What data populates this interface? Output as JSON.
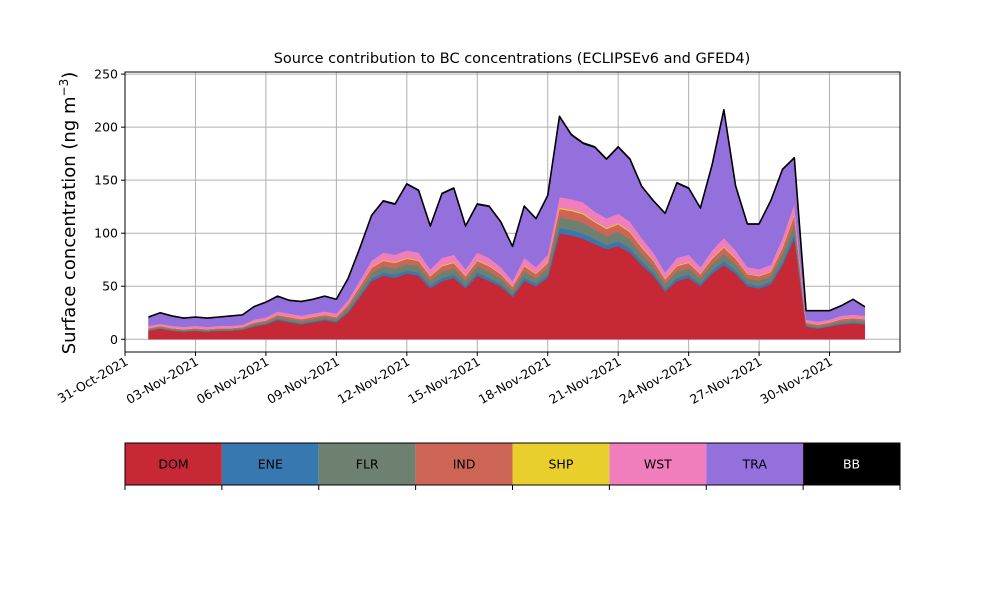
{
  "chart_data": {
    "type": "area",
    "stacked": true,
    "title": "Source contribution to BC concentrations (ECLIPSEv6 and GFED4)",
    "xlabel": "",
    "ylabel": "Surface concentration (ng m",
    "ylabel_sup": "−3",
    "ylabel_close": ")",
    "xlim": [
      "2021-10-31",
      "2021-12-03"
    ],
    "ylim": [
      -12,
      252
    ],
    "grid": true,
    "x_ticks": [
      "2021-10-31",
      "2021-11-03",
      "2021-11-06",
      "2021-11-09",
      "2021-11-12",
      "2021-11-15",
      "2021-11-18",
      "2021-11-21",
      "2021-11-24",
      "2021-11-27",
      "2021-11-30"
    ],
    "x_tick_labels": [
      "31-Oct-2021",
      "03-Nov-2021",
      "06-Nov-2021",
      "09-Nov-2021",
      "12-Nov-2021",
      "15-Nov-2021",
      "18-Nov-2021",
      "21-Nov-2021",
      "24-Nov-2021",
      "27-Nov-2021",
      "30-Nov-2021"
    ],
    "y_ticks": [
      0,
      50,
      100,
      150,
      200,
      250
    ],
    "y_tick_labels": [
      "0",
      "50",
      "100",
      "150",
      "200",
      "250"
    ],
    "x": [
      "2021-11-01",
      "2021-11-01 12:00",
      "2021-11-02",
      "2021-11-02 12:00",
      "2021-11-03",
      "2021-11-03 12:00",
      "2021-11-04",
      "2021-11-04 12:00",
      "2021-11-05",
      "2021-11-05 12:00",
      "2021-11-06",
      "2021-11-06 12:00",
      "2021-11-07",
      "2021-11-07 12:00",
      "2021-11-08",
      "2021-11-08 12:00",
      "2021-11-09",
      "2021-11-09 12:00",
      "2021-11-10",
      "2021-11-10 12:00",
      "2021-11-11",
      "2021-11-11 12:00",
      "2021-11-12",
      "2021-11-12 12:00",
      "2021-11-13",
      "2021-11-13 12:00",
      "2021-11-14",
      "2021-11-14 12:00",
      "2021-11-15",
      "2021-11-15 12:00",
      "2021-11-16",
      "2021-11-16 12:00",
      "2021-11-17",
      "2021-11-17 12:00",
      "2021-11-18",
      "2021-11-18 12:00",
      "2021-11-19",
      "2021-11-19 12:00",
      "2021-11-20",
      "2021-11-20 12:00",
      "2021-11-21",
      "2021-11-21 12:00",
      "2021-11-22",
      "2021-11-22 12:00",
      "2021-11-23",
      "2021-11-23 12:00",
      "2021-11-24",
      "2021-11-24 12:00",
      "2021-11-25",
      "2021-11-25 12:00",
      "2021-11-26",
      "2021-11-26 12:00",
      "2021-11-27",
      "2021-11-27 12:00",
      "2021-11-28",
      "2021-11-28 12:00",
      "2021-11-29",
      "2021-11-29 12:00",
      "2021-11-30",
      "2021-11-30 12:00",
      "2021-12-01",
      "2021-12-01 12:00"
    ],
    "series": [
      {
        "name": "DOM",
        "color": "#c62836",
        "values": [
          8,
          10,
          8,
          7,
          8,
          7,
          8,
          8,
          9,
          12,
          14,
          18,
          16,
          14,
          16,
          18,
          16,
          25,
          40,
          55,
          60,
          58,
          62,
          60,
          48,
          55,
          58,
          48,
          60,
          55,
          50,
          40,
          55,
          50,
          58,
          100,
          98,
          95,
          90,
          85,
          88,
          82,
          70,
          60,
          45,
          55,
          58,
          50,
          62,
          70,
          62,
          50,
          48,
          52,
          70,
          95,
          12,
          10,
          12,
          14,
          15,
          14
        ]
      },
      {
        "name": "ENE",
        "color": "#3778b0",
        "values": [
          0.5,
          0.5,
          0.5,
          0.5,
          0.5,
          0.5,
          0.5,
          0.5,
          0.5,
          0.8,
          0.8,
          1,
          1,
          1,
          1,
          1,
          1,
          1.5,
          2,
          2.5,
          3,
          3,
          3,
          3,
          2.5,
          3,
          3,
          2.5,
          3,
          3,
          2.5,
          2,
          3,
          2.5,
          3,
          5,
          5,
          5,
          4.5,
          4,
          4.5,
          4,
          3.5,
          3,
          2.5,
          3,
          3,
          2.5,
          3,
          3.5,
          3,
          2.5,
          2.5,
          2.5,
          3.5,
          5,
          0.8,
          0.8,
          0.8,
          1,
          1,
          1
        ]
      },
      {
        "name": "FLR",
        "color": "#6e8170",
        "values": [
          1,
          1,
          1,
          1,
          1,
          1,
          1,
          1,
          1,
          1.5,
          1.5,
          2,
          2,
          2,
          2,
          2,
          2,
          3,
          4,
          5,
          6,
          6,
          6,
          6,
          5,
          6,
          6,
          5,
          6,
          6,
          5,
          4,
          6,
          5,
          6,
          10,
          10,
          10,
          9,
          8,
          9,
          8,
          7,
          6,
          5,
          6,
          6,
          5,
          6,
          7,
          6,
          5,
          5,
          5,
          7,
          9,
          1.5,
          1.5,
          1.5,
          2,
          2,
          2
        ]
      },
      {
        "name": "IND",
        "color": "#cc6555",
        "values": [
          1,
          1,
          1,
          1,
          1,
          1,
          1,
          1,
          1,
          1.5,
          1.5,
          2,
          2,
          2,
          2,
          2,
          2,
          3,
          4,
          5,
          5,
          5,
          5,
          5,
          4,
          5,
          5,
          4,
          5,
          5,
          4,
          3.5,
          5,
          4,
          5,
          8,
          8,
          8,
          7,
          7,
          7,
          7,
          6,
          5,
          4,
          5,
          5,
          4,
          5,
          6,
          5,
          4,
          4,
          4,
          6,
          8,
          1.5,
          1.5,
          1.5,
          2,
          2,
          2
        ]
      },
      {
        "name": "SHP",
        "color": "#e8cf2c",
        "values": [
          0.2,
          0.2,
          0.2,
          0.2,
          0.2,
          0.2,
          0.2,
          0.2,
          0.2,
          0.3,
          0.3,
          0.3,
          0.3,
          0.3,
          0.3,
          0.3,
          0.3,
          0.4,
          0.5,
          0.6,
          0.8,
          0.8,
          0.8,
          0.8,
          0.6,
          0.8,
          0.8,
          0.6,
          0.8,
          0.8,
          0.6,
          0.5,
          0.8,
          0.6,
          0.8,
          1.2,
          1.2,
          1.2,
          1,
          1,
          1,
          1,
          0.9,
          0.8,
          0.6,
          0.8,
          0.8,
          0.6,
          0.8,
          1,
          0.8,
          0.6,
          0.6,
          0.6,
          1,
          1.2,
          0.3,
          0.3,
          0.3,
          0.3,
          0.3,
          0.3
        ]
      },
      {
        "name": "WST",
        "color": "#f07ebd",
        "values": [
          2,
          2,
          2,
          2,
          2,
          2,
          2,
          2,
          2,
          2.5,
          2.5,
          3,
          3,
          3,
          3,
          3,
          3,
          4,
          5,
          6,
          7,
          7,
          7,
          7,
          6,
          7,
          7,
          6,
          7,
          7,
          6,
          5,
          7,
          6,
          7,
          10,
          10,
          10,
          9,
          9,
          9,
          9,
          8,
          7,
          6,
          7,
          7,
          6,
          7,
          8,
          7,
          6,
          6,
          6,
          8,
          10,
          2.5,
          2.5,
          2.5,
          3,
          3,
          3
        ]
      },
      {
        "name": "TRA",
        "color": "#9370db",
        "values": [
          8,
          10,
          9,
          8,
          8,
          8,
          8,
          9,
          9,
          12,
          14,
          14,
          12,
          13,
          13,
          14,
          13,
          20,
          30,
          42,
          48,
          47,
          62,
          58,
          40,
          60,
          62,
          40,
          45,
          48,
          42,
          32,
          48,
          45,
          55,
          75,
          60,
          55,
          60,
          55,
          62,
          58,
          48,
          48,
          55,
          70,
          62,
          55,
          80,
          120,
          60,
          40,
          42,
          60,
          64,
          42,
          8,
          10,
          8,
          9,
          14,
          8
        ]
      },
      {
        "name": "BB",
        "color": "#000000",
        "values": [
          0.3,
          0.3,
          0.3,
          0.3,
          0.3,
          0.3,
          0.3,
          0.3,
          0.3,
          0.3,
          0.4,
          0.4,
          0.4,
          0.4,
          0.4,
          0.4,
          0.4,
          0.5,
          0.6,
          0.7,
          0.8,
          0.8,
          0.8,
          0.8,
          0.7,
          0.8,
          0.8,
          0.7,
          0.8,
          0.8,
          0.7,
          0.6,
          0.8,
          0.7,
          0.8,
          1,
          1,
          1,
          1,
          1,
          1,
          1,
          0.9,
          0.8,
          0.7,
          0.8,
          0.8,
          0.7,
          0.8,
          0.9,
          0.8,
          0.7,
          0.7,
          0.7,
          0.9,
          1,
          0.4,
          0.4,
          0.4,
          0.4,
          0.4,
          0.4
        ]
      }
    ],
    "legend": {
      "placement": "bottom",
      "entries": [
        {
          "label": "DOM",
          "color": "#c62836",
          "text_color": "#000000"
        },
        {
          "label": "ENE",
          "color": "#3778b0",
          "text_color": "#000000"
        },
        {
          "label": "FLR",
          "color": "#6e8170",
          "text_color": "#000000"
        },
        {
          "label": "IND",
          "color": "#cc6555",
          "text_color": "#000000"
        },
        {
          "label": "SHP",
          "color": "#e8cf2c",
          "text_color": "#000000"
        },
        {
          "label": "WST",
          "color": "#f07ebd",
          "text_color": "#000000"
        },
        {
          "label": "TRA",
          "color": "#9370db",
          "text_color": "#000000"
        },
        {
          "label": "BB",
          "color": "#000000",
          "text_color": "#ffffff"
        }
      ]
    }
  }
}
